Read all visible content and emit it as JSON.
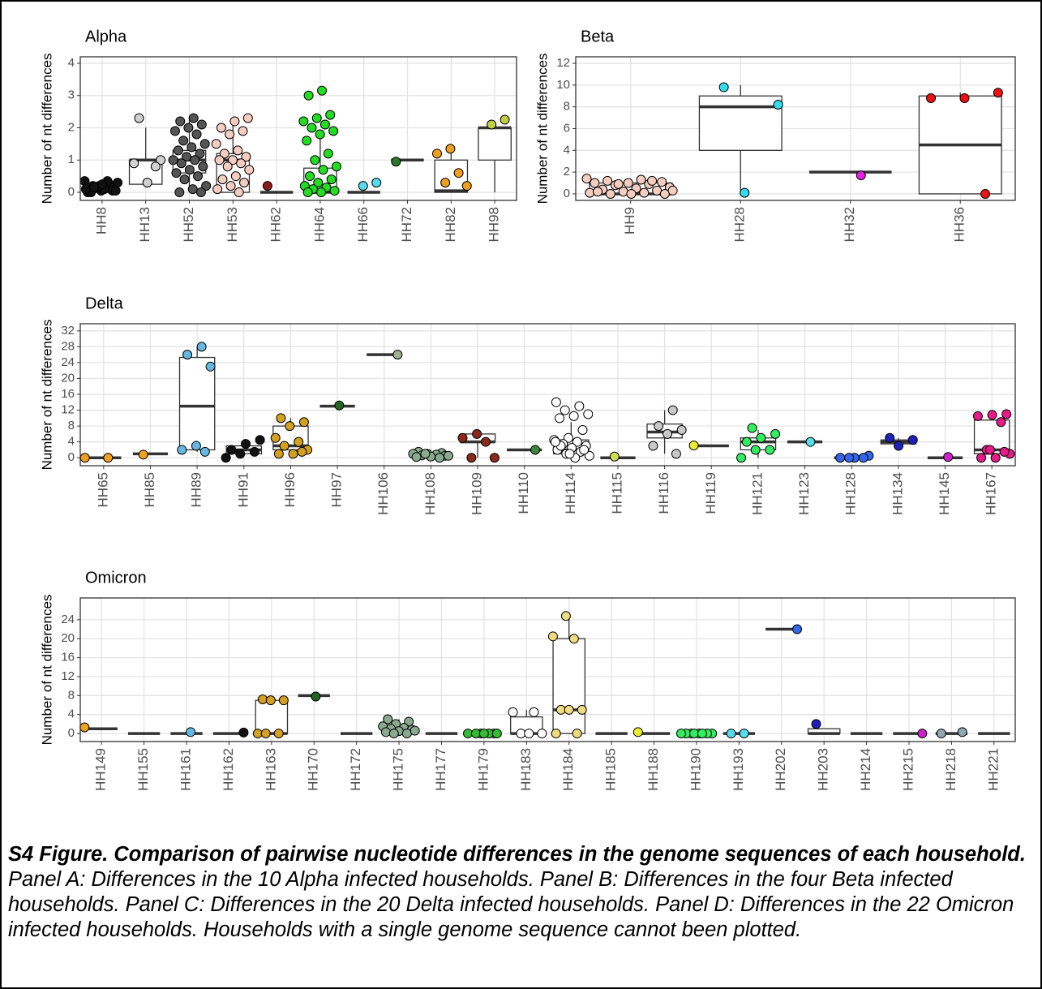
{
  "chart_data": [
    {
      "type": "box",
      "title": "Alpha",
      "ylabel": "Number of nt differences",
      "categories": [
        "HH8",
        "HH13",
        "HH52",
        "HH53",
        "HH62",
        "HH64",
        "HH66",
        "HH72",
        "HH82",
        "HH98"
      ],
      "colors": [
        "#111111",
        "#d0d0d0",
        "#555555",
        "#f5cdc0",
        "#8b1a1a",
        "#22dd22",
        "#55ddee",
        "#2a7a2a",
        "#f0a020",
        "#bcd040"
      ],
      "boxes": [
        [
          0,
          0,
          0.1,
          0.2,
          0.4
        ],
        [
          0.25,
          0.25,
          1,
          1,
          2
        ],
        [
          0,
          0.6,
          1,
          1.3,
          2.3
        ],
        [
          0,
          0,
          1,
          1.2,
          2.3
        ],
        [
          0,
          0,
          0,
          0,
          0
        ],
        [
          0,
          0,
          0,
          0.75,
          1.8
        ],
        [
          0,
          0,
          0,
          0,
          0
        ],
        [
          1,
          1,
          1,
          1,
          1
        ],
        [
          0,
          0,
          0.05,
          1,
          1.35
        ],
        [
          0,
          1,
          2,
          2,
          2
        ]
      ],
      "points": [
        [
          0.35,
          0.3,
          0.2,
          0.1,
          0.05,
          0,
          0.25,
          0.15,
          0.3,
          0.1,
          0,
          0.05,
          0.2,
          0.1,
          0.35,
          0.15,
          0.05,
          0.25
        ],
        [
          2.3,
          1,
          0.3,
          0.9,
          0.8
        ],
        [
          2.3,
          2.2,
          2.1,
          2,
          1.9,
          1.8,
          1.6,
          1.5,
          1.4,
          1.3,
          1.2,
          1.1,
          1,
          1,
          0.9,
          0.8,
          0.7,
          0.6,
          0.5,
          0.4,
          0.2,
          0.1,
          0,
          0
        ],
        [
          2.3,
          2.2,
          2,
          1.9,
          1.8,
          1.5,
          1.3,
          1.2,
          1.1,
          1,
          1,
          0.9,
          0.8,
          0.7,
          0.5,
          0.4,
          0.3,
          0.2,
          0.1,
          0
        ],
        [
          0.2
        ],
        [
          3.15,
          3,
          2.4,
          2.3,
          2.2,
          2.1,
          2,
          1.9,
          1.8,
          1.6,
          1.2,
          1,
          0.8,
          0.7,
          0.5,
          0.4,
          0.3,
          0.2,
          0.15,
          0.1,
          0.05,
          0,
          0
        ],
        [
          0.3,
          0.2
        ],
        [
          0.95
        ],
        [
          1.35,
          1.2,
          0.6,
          0.3,
          0.2
        ],
        [
          2.25,
          2.1
        ]
      ],
      "ylim": [
        -0.25,
        4.2
      ],
      "yticks": [
        0,
        1,
        2,
        3,
        4
      ],
      "grid": true
    },
    {
      "type": "box",
      "title": "Beta",
      "ylabel": "Number of nt differences",
      "categories": [
        "HH9",
        "HH28",
        "HH32",
        "HH36"
      ],
      "colors": [
        "#f5cdc0",
        "#33ddee",
        "#e020e0",
        "#ee1111"
      ],
      "boxes": [
        [
          0,
          0,
          0,
          1,
          1.3
        ],
        [
          0,
          4,
          8,
          9,
          10
        ],
        [
          2,
          2,
          2,
          2,
          2
        ],
        [
          0,
          0,
          4.5,
          9,
          9.3
        ]
      ],
      "points": [
        [
          1.4,
          1.3,
          1.2,
          1.1,
          1,
          1,
          0.9,
          0.8,
          0.6,
          0.5,
          0.4,
          0.3,
          0.2,
          0.1,
          0.1,
          0,
          0,
          0,
          0.2,
          1.2,
          0.9,
          0.3
        ],
        [
          9.8,
          8.2,
          0.1
        ],
        [
          1.7
        ],
        [
          9.3,
          8.8,
          8.8,
          0
        ]
      ],
      "ylim": [
        -0.6,
        12.6
      ],
      "yticks": [
        0,
        2,
        4,
        6,
        8,
        10,
        12
      ],
      "grid": true
    },
    {
      "type": "box",
      "title": "Delta",
      "ylabel": "Number of nt differences",
      "categories": [
        "HH65",
        "HH85",
        "HH89",
        "HH91",
        "HH96",
        "HH97",
        "HH106",
        "HH108",
        "HH109",
        "HH110",
        "HH114",
        "HH115",
        "HH116",
        "HH119",
        "HH121",
        "HH123",
        "HH128",
        "HH134",
        "HH145",
        "HH167"
      ],
      "colors": [
        "#f0a020",
        "#f0a020",
        "#66b8e0",
        "#111111",
        "#d4a020",
        "#226622",
        "#a0b090",
        "#8aaa90",
        "#8b2a1a",
        "#3a8a3a",
        "#ffffff",
        "#ccdd55",
        "#c8c8c8",
        "#eeee30",
        "#30ee60",
        "#55ddee",
        "#3366ee",
        "#2020bb",
        "#cc22cc",
        "#e81a8a"
      ],
      "boxes": [
        [
          0,
          0,
          0,
          0,
          0
        ],
        [
          1,
          1,
          1,
          1,
          1
        ],
        [
          1.5,
          2,
          13,
          25.3,
          28
        ],
        [
          1,
          1,
          2,
          3,
          4
        ],
        [
          1,
          2,
          3,
          8,
          10
        ],
        [
          13,
          13,
          13,
          13,
          13
        ],
        [
          26,
          26,
          26,
          26,
          26
        ],
        [
          0,
          0,
          1,
          1,
          2
        ],
        [
          0,
          4,
          4,
          6,
          6
        ],
        [
          2,
          2,
          2,
          2,
          2
        ],
        [
          0,
          1,
          2,
          4.5,
          9
        ],
        [
          0,
          0,
          0,
          0,
          0
        ],
        [
          1,
          5,
          6.5,
          8.5,
          12
        ],
        [
          3,
          3,
          3,
          3,
          3
        ],
        [
          0,
          2,
          4,
          5,
          7
        ],
        [
          4,
          4,
          4,
          4,
          4
        ],
        [
          0,
          0,
          0,
          0,
          0
        ],
        [
          3.5,
          3.5,
          4,
          4.5,
          5
        ],
        [
          0,
          0,
          0,
          0,
          0
        ],
        [
          0,
          1,
          2,
          9.5,
          11
        ]
      ],
      "points": [
        [
          0,
          0
        ],
        [
          0.8
        ],
        [
          28,
          26,
          23,
          3,
          2,
          1.5
        ],
        [
          4.5,
          3.5,
          2,
          1.5,
          1,
          0
        ],
        [
          10,
          9,
          8,
          5,
          4,
          3,
          2,
          1,
          1,
          1.5
        ],
        [
          13.2
        ],
        [
          26
        ],
        [
          1.5,
          1.2,
          1,
          1,
          0.8,
          0.6,
          0.5,
          0.3,
          0.2,
          0,
          1,
          0.5
        ],
        [
          6,
          5,
          4,
          0,
          0
        ],
        [
          2
        ],
        [
          14,
          13,
          12,
          11,
          10.5,
          10,
          7,
          5,
          4.5,
          4,
          3.5,
          3,
          2.5,
          2,
          1.5,
          1,
          0.5,
          0,
          3,
          2,
          1,
          4
        ],
        [
          0.3
        ],
        [
          12,
          8,
          7,
          6,
          3,
          1
        ],
        [
          3.1
        ],
        [
          7.5,
          6,
          5,
          4,
          2,
          2,
          0
        ],
        [
          4
        ],
        [
          0.5,
          0,
          0,
          0,
          0
        ],
        [
          5,
          4.5,
          3
        ],
        [
          0.2
        ],
        [
          11,
          10.8,
          10.5,
          9,
          2,
          1,
          0,
          0,
          1.5,
          2
        ]
      ],
      "ylim": [
        -2,
        33.8
      ],
      "yticks": [
        0,
        4,
        8,
        12,
        16,
        20,
        24,
        28,
        32
      ],
      "grid": true
    },
    {
      "type": "box",
      "title": "Omicron",
      "ylabel": "Number of nt differences",
      "categories": [
        "HH149",
        "HH155",
        "HH161",
        "HH162",
        "HH163",
        "HH170",
        "HH172",
        "HH175",
        "HH177",
        "HH179",
        "HH183",
        "HH184",
        "HH185",
        "HH188",
        "HH190",
        "HH193",
        "HH202",
        "HH203",
        "HH214",
        "HH215",
        "HH218",
        "HH221"
      ],
      "colors": [
        "#f0a020",
        "#888888",
        "#66b8e0",
        "#111111",
        "#d4a020",
        "#226622",
        "#888888",
        "#8aaa90",
        "#888888",
        "#33bb33",
        "#ffffff",
        "#f0dc80",
        "#888888",
        "#eeee30",
        "#30ee60",
        "#55ddee",
        "#3366ee",
        "#2020bb",
        "#888888",
        "#cc22cc",
        "#90a8b0",
        "#888888"
      ],
      "boxes": [
        [
          1,
          1,
          1,
          1,
          1
        ],
        [
          0,
          0,
          0,
          0,
          0
        ],
        [
          0,
          0,
          0,
          0,
          0
        ],
        [
          0,
          0,
          0,
          0,
          0
        ],
        [
          0,
          0,
          0,
          7,
          7.5
        ],
        [
          8,
          8,
          8,
          8,
          8
        ],
        [
          0,
          0,
          0,
          0,
          0
        ],
        [
          0,
          0,
          0.5,
          1,
          3
        ],
        [
          0,
          0,
          0,
          0,
          0
        ],
        [
          0,
          0,
          0,
          0,
          0
        ],
        [
          0,
          0,
          0,
          3.5,
          5
        ],
        [
          0,
          0,
          5,
          20,
          25
        ],
        [
          0,
          0,
          0,
          0,
          0
        ],
        [
          0,
          0,
          0,
          0,
          0
        ],
        [
          0,
          0,
          0,
          0,
          0
        ],
        [
          0,
          0,
          0,
          0,
          0
        ],
        [
          22,
          22,
          22,
          22,
          22
        ],
        [
          0,
          0,
          0,
          1,
          1
        ],
        [
          0,
          0,
          0,
          0,
          0
        ],
        [
          0,
          0,
          0,
          0,
          0
        ],
        [
          0,
          0,
          0,
          0,
          0
        ],
        [
          0,
          0,
          0,
          0,
          0
        ]
      ],
      "points": [
        [
          1.3
        ],
        [],
        [
          0.3
        ],
        [
          0.2
        ],
        [
          7.2,
          7,
          7,
          0,
          0,
          0
        ],
        [
          7.8
        ],
        [],
        [
          3,
          2.5,
          2,
          1.5,
          1.2,
          1,
          0.8,
          0.5,
          0.3,
          0,
          0,
          0.6
        ],
        [],
        [
          0,
          0,
          0,
          0,
          0,
          0,
          0
        ],
        [
          4.5,
          4.5,
          0,
          0,
          0
        ],
        [
          24.8,
          20.5,
          20,
          5,
          5,
          5,
          0,
          0
        ],
        [],
        [
          0.3
        ],
        [
          0,
          0,
          0,
          0,
          0,
          0,
          0,
          0
        ],
        [
          0,
          0
        ],
        [
          22
        ],
        [
          2
        ],
        [],
        [
          0
        ],
        [
          0,
          0.3
        ],
        []
      ],
      "ylim": [
        -1.7,
        28.6
      ],
      "yticks": [
        0,
        4,
        8,
        12,
        16,
        20,
        24
      ],
      "grid": true
    }
  ],
  "caption": {
    "label": "S4 Figure. Comparison of pairwise nucleotide differences in the genome sequences of each household.",
    "text": "Panel A: Differences in the 10 Alpha infected households. Panel B: Differences in the four Beta infected households. Panel C: Differences in the 20 Delta infected households. Panel D: Differences in the 22 Omicron infected households. Households with a single genome sequence cannot been plotted."
  }
}
